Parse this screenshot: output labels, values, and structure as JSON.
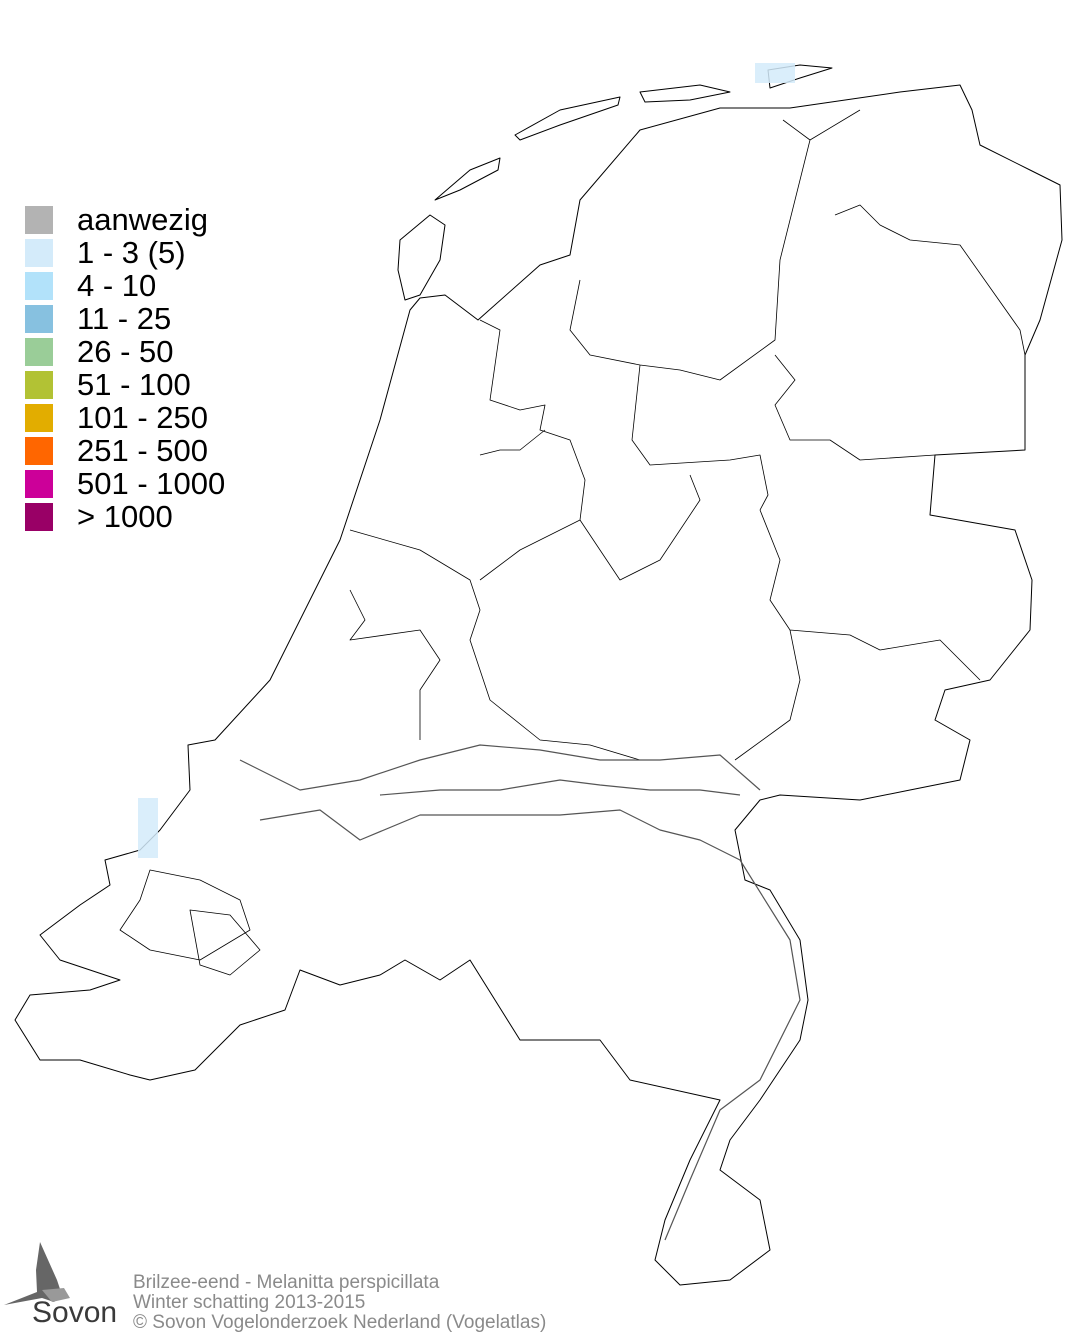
{
  "legend": {
    "items": [
      {
        "label": "aanwezig",
        "color": "#b3b3b3"
      },
      {
        "label": "1 - 3 (5)",
        "color": "#d4ebfa"
      },
      {
        "label": "4 - 10",
        "color": "#b2e2fa"
      },
      {
        "label": "11 - 25",
        "color": "#87c1e0"
      },
      {
        "label": "26 - 50",
        "color": "#9acd98"
      },
      {
        "label": "51 - 100",
        "color": "#b2c234"
      },
      {
        "label": "101 - 250",
        "color": "#e2ad00"
      },
      {
        "label": "251 - 500",
        "color": "#ff6600"
      },
      {
        "label": "501 - 1000",
        "color": "#cc0099"
      },
      {
        "label": "> 1000",
        "color": "#990066"
      }
    ]
  },
  "map": {
    "occupied_cells": [
      {
        "class": "1 - 3 (5)",
        "color": "#d4ebfa",
        "location": "Schiermonnikoog"
      },
      {
        "class": "1 - 3 (5)",
        "color": "#d4ebfa",
        "location": "Zeeland coast"
      }
    ]
  },
  "credits": {
    "species": "Brilzee-eend - Melanitta perspicillata",
    "period": "Winter schatting 2013-2015",
    "copyright": "© Sovon Vogelonderzoek Nederland (Vogelatlas)"
  },
  "logo": {
    "text": "Sovon"
  }
}
